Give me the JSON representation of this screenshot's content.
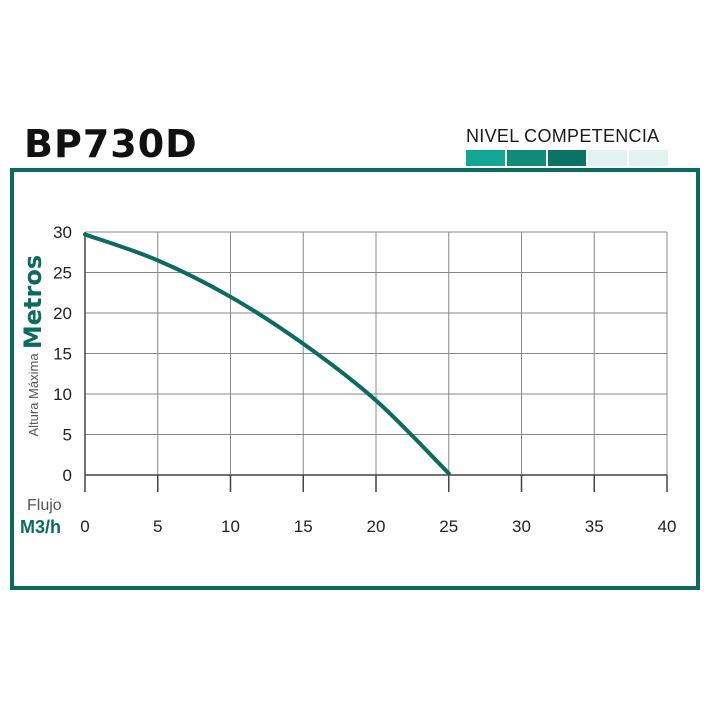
{
  "title": "BP730D",
  "competence": {
    "label": "NIVEL COMPETENCIA",
    "filled": 3,
    "total": 5,
    "colors": [
      "#13a595",
      "#0f8a7c",
      "#0b7366"
    ],
    "empty_color": "#e2f2ef"
  },
  "colors": {
    "curve": "#0b6b60",
    "frame": "#0b6b60",
    "grid": "#888888",
    "accent": "#0b6b60"
  },
  "chart_data": {
    "type": "line",
    "title": "BP730D",
    "ylabel_small": "Altura Máxima",
    "ylabel_big": "Metros",
    "xlabel_small": "Flujo",
    "xlabel_big": "M3/h",
    "xlim": [
      0,
      40
    ],
    "ylim": [
      0,
      30
    ],
    "xticks": [
      0,
      5,
      10,
      15,
      20,
      25,
      30,
      35,
      40
    ],
    "yticks": [
      0,
      5,
      10,
      15,
      20,
      25,
      30
    ],
    "grid": true,
    "series": [
      {
        "x": [
          0,
          5,
          10,
          15,
          20,
          25
        ],
        "y": [
          29.7,
          26.5,
          22,
          16.2,
          9.2,
          0.2
        ]
      }
    ]
  }
}
